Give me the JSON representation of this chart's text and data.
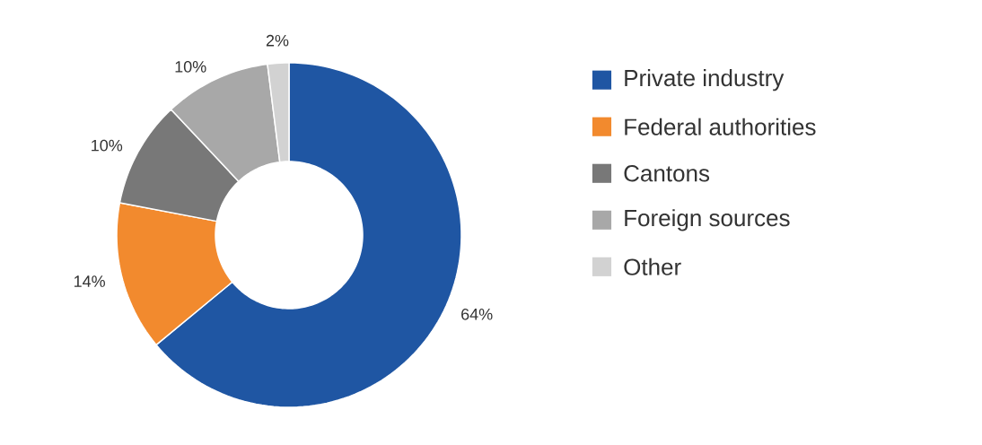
{
  "chart_data": {
    "type": "donut",
    "categories": [
      "Private industry",
      "Federal authorities",
      "Cantons",
      "Foreign sources",
      "Other"
    ],
    "values": [
      64,
      14,
      10,
      10,
      2
    ],
    "value_labels": [
      "64%",
      "14%",
      "10%",
      "10%",
      "2%"
    ],
    "colors": [
      "#1f56a3",
      "#f28a2e",
      "#787878",
      "#a8a8a8",
      "#d2d2d2"
    ],
    "legend": "right"
  }
}
